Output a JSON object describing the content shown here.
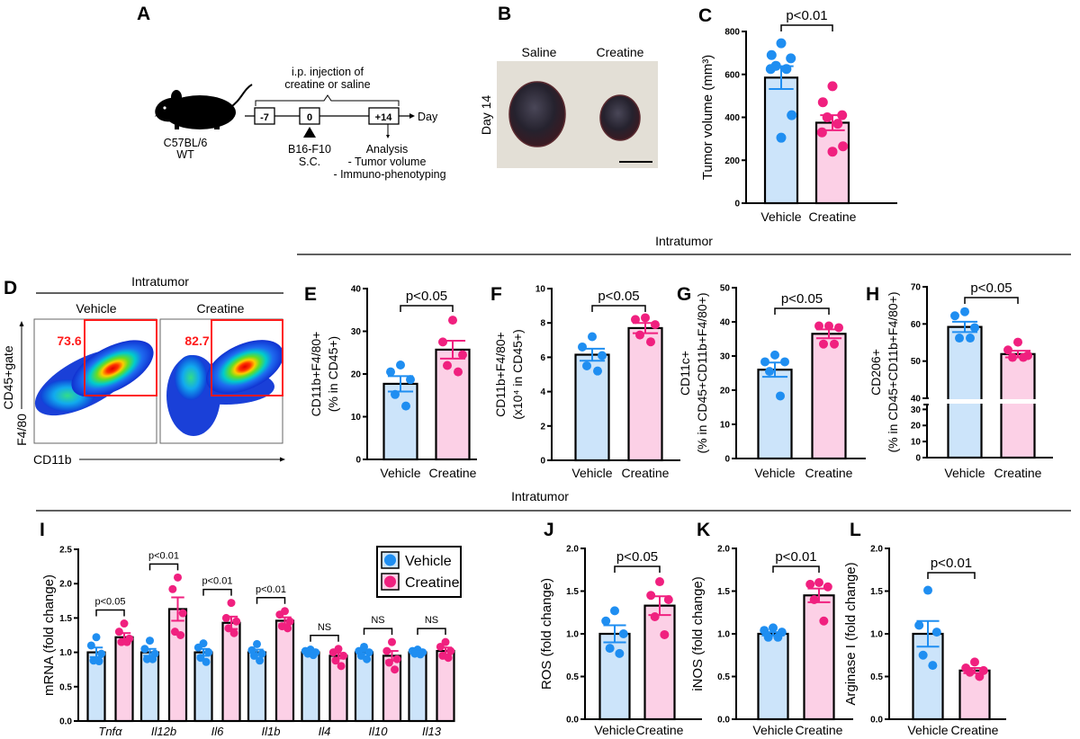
{
  "colors": {
    "vehicle_fill": "#cce4fa",
    "vehicle_dot": "#1f8ef1",
    "creatine_fill": "#fcd0e6",
    "creatine_dot": "#f0207f",
    "gate": "#ff1a1a"
  },
  "section_titles": [
    "Intratumor",
    "Intratumor"
  ],
  "panel_a": {
    "label": "A",
    "strain": "C57BL/6",
    "strain_type": "WT",
    "injection_line1": "i.p. injection of",
    "injection_line2": "creatine or saline",
    "days": [
      "-7",
      "0",
      "+14"
    ],
    "day_label": "Day",
    "cells": "B16-F10",
    "route": "S.C.",
    "analysis": "Analysis",
    "analysis_items": [
      "-   Tumor volume",
      "- Immuno-phenotyping"
    ],
    "icon": "mouse-silhouette-icon"
  },
  "panel_b": {
    "label": "B",
    "columns": [
      "Saline",
      "Creatine"
    ],
    "row_label": "Day 14"
  },
  "panel_d": {
    "label": "D",
    "header": "Intratumor",
    "groups": [
      {
        "name": "Vehicle",
        "gate_percent": "73.6"
      },
      {
        "name": "Creatine",
        "gate_percent": "82.7"
      }
    ],
    "ylabel_gate": "CD45+gate",
    "ylabel": "F4/80",
    "xlabel": "CD11b"
  },
  "chart_data": [
    {
      "panel": "C",
      "type": "bar",
      "categories": [
        "Vehicle",
        "Creatine"
      ],
      "ylabel": [
        "Tumor volume (mm³)"
      ],
      "ylim": [
        0,
        800
      ],
      "yticks": [
        0,
        200,
        400,
        600,
        800
      ],
      "ytick_labels": [
        "0",
        "200",
        "400",
        "600",
        "800"
      ],
      "means": [
        585,
        375
      ],
      "sem": [
        53,
        35
      ],
      "points": [
        [
          745,
          690,
          675,
          640,
          625,
          625,
          410,
          305
        ],
        [
          545,
          470,
          410,
          400,
          370,
          330,
          265,
          240
        ]
      ],
      "annotation": "p<0.01"
    },
    {
      "panel": "E",
      "type": "bar",
      "categories": [
        "Vehicle",
        "Creatine"
      ],
      "ylabel": [
        "CD11b+F4/80+",
        "(% in CD45+)"
      ],
      "ylim": [
        0,
        40
      ],
      "yticks": [
        0,
        10,
        20,
        30,
        40
      ],
      "ytick_labels": [
        "0",
        "10",
        "20",
        "30",
        "40"
      ],
      "means": [
        17.7,
        25.7
      ],
      "sem": [
        1.8,
        2.1
      ],
      "points": [
        [
          22.1,
          20.5,
          18.7,
          15.2,
          12.5
        ],
        [
          32.6,
          27.5,
          24.5,
          22.0,
          20.5
        ]
      ],
      "annotation": "p<0.05"
    },
    {
      "panel": "F",
      "type": "bar",
      "categories": [
        "Vehicle",
        "Creatine"
      ],
      "ylabel": [
        "CD11b+F4/80+",
        "(x10⁴ in CD45+)"
      ],
      "ylim": [
        0,
        10
      ],
      "yticks": [
        0,
        2,
        4,
        6,
        8,
        10
      ],
      "ytick_labels": [
        "0",
        "2",
        "4",
        "6",
        "8",
        "10"
      ],
      "means": [
        6.15,
        7.7
      ],
      "sem": [
        0.35,
        0.3
      ],
      "points": [
        [
          7.2,
          6.6,
          6.1,
          5.5,
          5.2
        ],
        [
          8.3,
          8.2,
          7.9,
          7.3,
          6.9
        ]
      ],
      "annotation": "p<0.05"
    },
    {
      "panel": "G",
      "type": "bar",
      "categories": [
        "Vehicle",
        "Creatine"
      ],
      "ylabel": [
        "CD11c+",
        "(% in CD45+CD11b+F4/80+)"
      ],
      "ylim": [
        0,
        50
      ],
      "yticks": [
        0,
        10,
        20,
        30,
        40,
        50
      ],
      "ytick_labels": [
        "0",
        "10",
        "20",
        "30",
        "40",
        "50"
      ],
      "means": [
        26.0,
        36.5
      ],
      "sem": [
        2.1,
        1.3
      ],
      "points": [
        [
          30.3,
          28.3,
          28.3,
          25.5,
          18.3
        ],
        [
          38.8,
          38.8,
          38.3,
          33.5,
          33.5
        ]
      ],
      "annotation": "p<0.05"
    },
    {
      "panel": "H",
      "type": "bar",
      "categories": [
        "Vehicle",
        "Creatine"
      ],
      "ylabel": [
        "CD206+",
        "(% in CD45+CD11b+F4/80+)"
      ],
      "ylim": [
        0,
        70
      ],
      "axis_break": [
        33,
        40
      ],
      "yticks": [
        0,
        10,
        20,
        30,
        40,
        50,
        60,
        70
      ],
      "ytick_labels": [
        "0",
        "10",
        "20",
        "30",
        "40",
        "50",
        "60",
        "70"
      ],
      "means": [
        59.2,
        51.9
      ],
      "sem": [
        1.4,
        0.9
      ],
      "points": [
        [
          63.3,
          62.2,
          59.0,
          56.2,
          56.2
        ],
        [
          55.1,
          53.0,
          51.5,
          51.0,
          51.0
        ]
      ],
      "annotation": "p<0.05"
    },
    {
      "panel": "I",
      "type": "bar",
      "categories": [
        "Tnfα",
        "Il12b",
        "Il6",
        "Il1b",
        "Il4",
        "Il10",
        "Il13"
      ],
      "ylabel": [
        "mRNA (fold change)"
      ],
      "ylim": [
        0,
        2.5
      ],
      "yticks": [
        0,
        0.5,
        1.0,
        1.5,
        2.0,
        2.5
      ],
      "ytick_labels": [
        "0.0",
        "0.5",
        "1.0",
        "1.5",
        "2.0",
        "2.5"
      ],
      "legend": "top-right",
      "series": [
        {
          "name": "Vehicle",
          "means": [
            1.0,
            1.0,
            1.0,
            1.0,
            1.0,
            1.0,
            1.0
          ],
          "sem": [
            0.07,
            0.05,
            0.05,
            0.04,
            0.01,
            0.02,
            0.01
          ],
          "points": [
            [
              1.22,
              1.1,
              0.98,
              0.88,
              0.87
            ],
            [
              1.17,
              1.05,
              0.98,
              0.9,
              0.9
            ],
            [
              1.13,
              1.07,
              1.0,
              0.92,
              0.86
            ],
            [
              1.12,
              1.03,
              0.98,
              0.95,
              0.88
            ],
            [
              1.04,
              1.02,
              1.0,
              0.98,
              0.96
            ],
            [
              1.08,
              1.02,
              1.0,
              0.95,
              0.9
            ],
            [
              1.04,
              1.02,
              1.0,
              0.98,
              0.97
            ]
          ]
        },
        {
          "name": "Creatine",
          "means": [
            1.22,
            1.63,
            1.43,
            1.46,
            0.95,
            0.95,
            1.02
          ],
          "sem": [
            0.06,
            0.17,
            0.09,
            0.05,
            0.04,
            0.07,
            0.05
          ],
          "points": [
            [
              1.42,
              1.3,
              1.2,
              1.15,
              1.15
            ],
            [
              2.09,
              1.92,
              1.57,
              1.3,
              1.25
            ],
            [
              1.72,
              1.5,
              1.45,
              1.35,
              1.28
            ],
            [
              1.6,
              1.55,
              1.45,
              1.38,
              1.35
            ],
            [
              1.05,
              1.0,
              0.95,
              0.88,
              0.8
            ],
            [
              1.15,
              1.02,
              0.9,
              0.85,
              0.75
            ],
            [
              1.15,
              1.08,
              1.02,
              0.95,
              0.92
            ]
          ]
        }
      ],
      "annotations": [
        "p<0.05",
        "p<0.01",
        "p<0.01",
        "p<0.01",
        "NS",
        "NS",
        "NS"
      ]
    },
    {
      "panel": "J",
      "type": "bar",
      "categories": [
        "Vehicle",
        "Creatine"
      ],
      "ylabel": [
        "ROS (fold change)"
      ],
      "ylim": [
        0,
        2.0
      ],
      "yticks": [
        0,
        0.5,
        1.0,
        1.5,
        2.0
      ],
      "ytick_labels": [
        "0.0",
        "0.5",
        "1.0",
        "1.5",
        "2.0"
      ],
      "means": [
        1.0,
        1.33
      ],
      "sem": [
        0.1,
        0.11
      ],
      "points": [
        [
          1.27,
          1.15,
          1.0,
          0.83,
          0.77
        ],
        [
          1.61,
          1.45,
          1.4,
          1.2,
          0.99
        ]
      ],
      "annotation": "p<0.05"
    },
    {
      "panel": "K",
      "type": "bar",
      "categories": [
        "Vehicle",
        "Creatine"
      ],
      "ylabel": [
        "iNOS (fold change)"
      ],
      "ylim": [
        0,
        2.0
      ],
      "yticks": [
        0,
        0.5,
        1.0,
        1.5,
        2.0
      ],
      "ytick_labels": [
        "0.0",
        "0.5",
        "1.0",
        "1.5",
        "2.0"
      ],
      "means": [
        1.0,
        1.45
      ],
      "sem": [
        0.02,
        0.08
      ],
      "points": [
        [
          1.07,
          1.04,
          1.02,
          0.96,
          0.96
        ],
        [
          1.6,
          1.58,
          1.55,
          1.4,
          1.15
        ]
      ],
      "annotation": "p<0.01"
    },
    {
      "panel": "L",
      "type": "bar",
      "categories": [
        "Vehicle",
        "Creatine"
      ],
      "ylabel": [
        "Arginase I (fold change)"
      ],
      "ylim": [
        0,
        2.0
      ],
      "yticks": [
        0,
        0.5,
        1.0,
        1.5,
        2.0
      ],
      "ytick_labels": [
        "0.0",
        "0.5",
        "1.0",
        "1.5",
        "2.0"
      ],
      "means": [
        1.0,
        0.57
      ],
      "sem": [
        0.15,
        0.03
      ],
      "points": [
        [
          1.51,
          1.1,
          1.02,
          0.75,
          0.63
        ],
        [
          0.67,
          0.6,
          0.57,
          0.55,
          0.5
        ]
      ],
      "annotation": "p<0.01"
    }
  ]
}
